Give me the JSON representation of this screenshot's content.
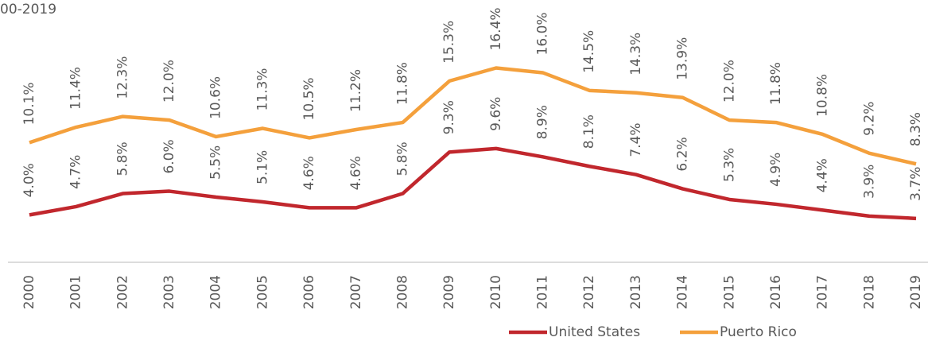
{
  "chart_data": {
    "type": "line",
    "title": "00-2019",
    "categories": [
      "2000",
      "2001",
      "2002",
      "2003",
      "2004",
      "2005",
      "2006",
      "2007",
      "2008",
      "2009",
      "2010",
      "2011",
      "2012",
      "2013",
      "2014",
      "2015",
      "2016",
      "2017",
      "2018",
      "2019"
    ],
    "series": [
      {
        "name": "United States",
        "color": "#c1272d",
        "values": [
          4.0,
          4.7,
          5.8,
          6.0,
          5.5,
          5.1,
          4.6,
          4.6,
          5.8,
          9.3,
          9.6,
          8.9,
          8.1,
          7.4,
          6.2,
          5.3,
          4.9,
          4.4,
          3.9,
          3.7
        ],
        "value_labels": [
          "4.0%",
          "4.7%",
          "5.8%",
          "6.0%",
          "5.5%",
          "5.1%",
          "4.6%",
          "4.6%",
          "5.8%",
          "9.3%",
          "9.6%",
          "8.9%",
          "8.1%",
          "7.4%",
          "6.2%",
          "5.3%",
          "4.9%",
          "4.4%",
          "3.9%",
          "3.7%"
        ]
      },
      {
        "name": "Puerto Rico",
        "color": "#f4a03c",
        "values": [
          10.1,
          11.4,
          12.3,
          12.0,
          10.6,
          11.3,
          10.5,
          11.2,
          11.8,
          15.3,
          16.4,
          16.0,
          14.5,
          14.3,
          13.9,
          12.0,
          11.8,
          10.8,
          9.2,
          8.3
        ],
        "value_labels": [
          "10.1%",
          "11.4%",
          "12.3%",
          "12.0%",
          "10.6%",
          "11.3%",
          "10.5%",
          "11.2%",
          "11.8%",
          "15.3%",
          "16.4%",
          "16.0%",
          "14.5%",
          "14.3%",
          "13.9%",
          "12.0%",
          "11.8%",
          "10.8%",
          "9.2%",
          "8.3%"
        ]
      }
    ],
    "ylim": [
      0,
      22
    ],
    "legend": "bottom"
  }
}
